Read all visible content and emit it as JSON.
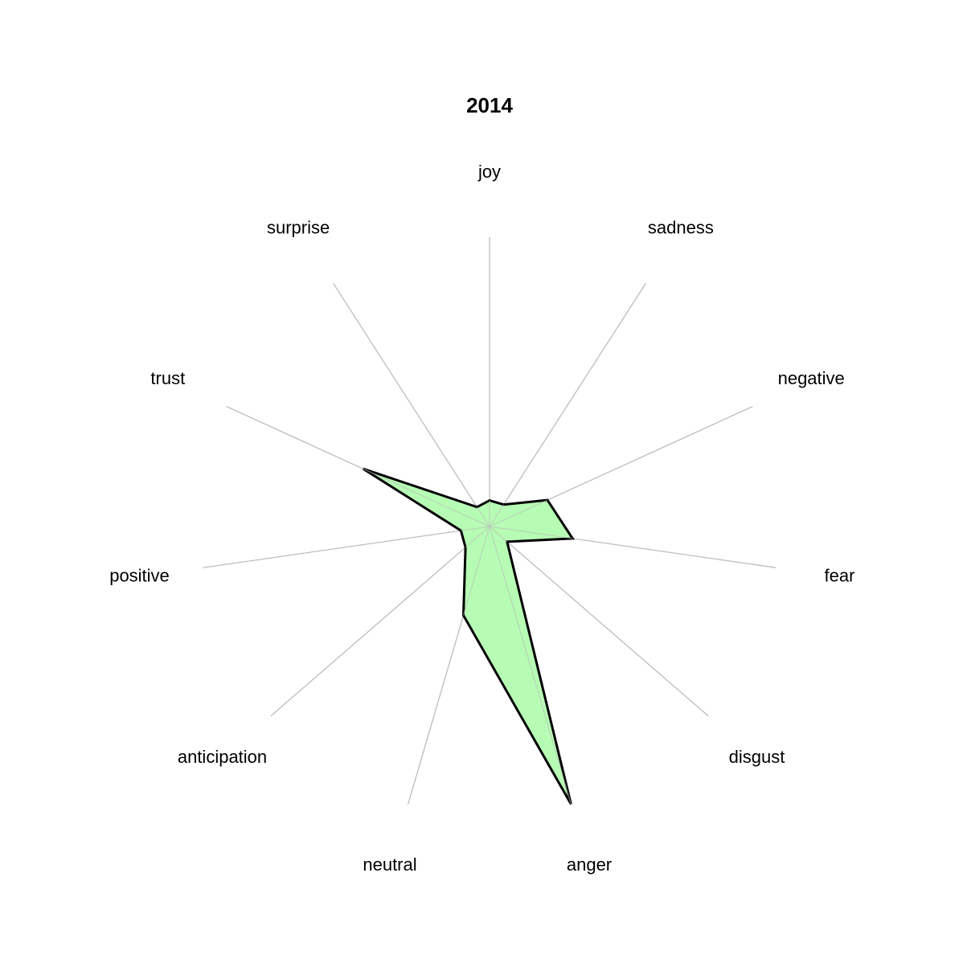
{
  "chart_data": {
    "type": "radar",
    "title": "2014",
    "axes": [
      "joy",
      "sadness",
      "negative",
      "fear",
      "disgust",
      "anger",
      "neutral",
      "anticipation",
      "positive",
      "trust",
      "surprise"
    ],
    "series": [
      {
        "values": [
          0.09,
          0.09,
          0.22,
          0.29,
          0.08,
          1.0,
          0.32,
          0.11,
          0.1,
          0.48,
          0.08
        ],
        "fill": "#b3fcb0",
        "stroke": "#000000"
      }
    ],
    "range": [
      0,
      1
    ],
    "grid": false,
    "spoke_color": "#bdbdbd"
  }
}
